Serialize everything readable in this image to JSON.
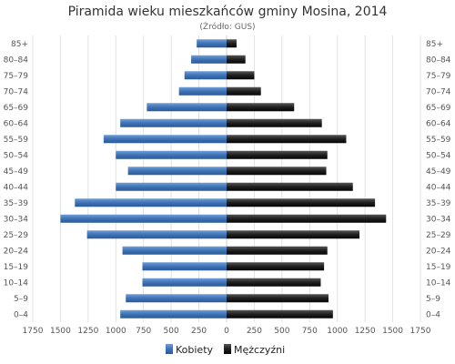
{
  "chart_data": {
    "type": "bar",
    "orientation": "horizontal",
    "title": "Piramida wieku mieszkańców gminy Mosina, 2014",
    "subtitle": "(Źródło: GUS)",
    "categories": [
      "0–4",
      "5–9",
      "10–14",
      "15–19",
      "20–24",
      "25–29",
      "30–34",
      "35–39",
      "40–44",
      "45–49",
      "50–54",
      "55–59",
      "60–64",
      "65–69",
      "70–74",
      "75–79",
      "80–84",
      "85+"
    ],
    "series": [
      {
        "name": "Kobiety",
        "side": "left",
        "color": "#4a7ebb",
        "values": [
          960,
          910,
          760,
          760,
          940,
          1260,
          1500,
          1370,
          1000,
          890,
          1000,
          1110,
          960,
          720,
          430,
          380,
          320,
          270
        ]
      },
      {
        "name": "Mężczyźni",
        "side": "right",
        "color": "#1c1c1c",
        "values": [
          960,
          920,
          850,
          880,
          910,
          1200,
          1440,
          1340,
          1140,
          900,
          910,
          1080,
          860,
          610,
          310,
          250,
          170,
          90
        ]
      }
    ],
    "xticks": [
      "1750",
      "1500",
      "1250",
      "1000",
      "750",
      "500",
      "250",
      "0",
      "250",
      "500",
      "750",
      "1000",
      "1250",
      "1500",
      "1750"
    ],
    "xlim": [
      -1750,
      1750
    ],
    "grid": true,
    "legend": "bottom"
  }
}
